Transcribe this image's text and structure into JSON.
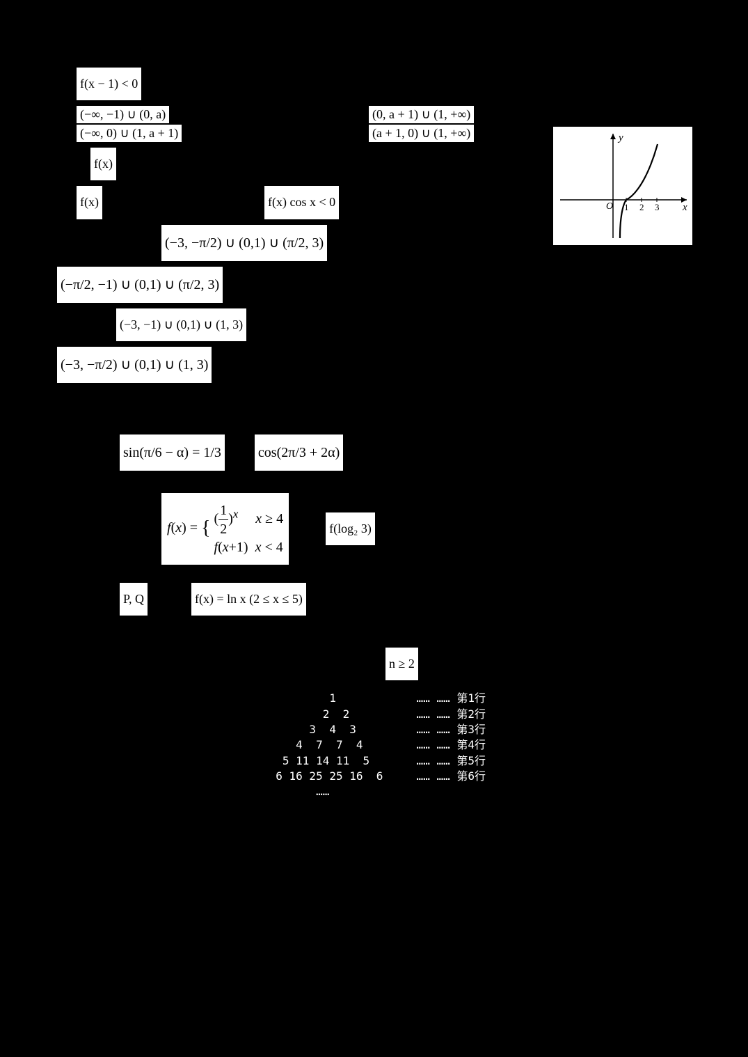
{
  "q10": {
    "ineq": "f(x − 1) < 0",
    "A": "(−∞, −1) ∪ (0, a)",
    "B": "(0, a + 1) ∪ (1, +∞)",
    "C": "(−∞, 0) ∪ (1, a + 1)",
    "D": "(a + 1, 0) ∪ (1, +∞)"
  },
  "q11": {
    "fx1": "f(x)",
    "fx2": "f(x)",
    "ineq": "f(x) cos x < 0",
    "center": "(−3, −π/2) ∪ (0,1) ∪ (π/2, 3)",
    "A": "(−π/2, −1) ∪ (0,1) ∪ (π/2, 3)",
    "B": "(−3, −1) ∪ (0,1) ∪ (1, 3)",
    "C": "(−3, −π/2) ∪ (0,1) ∪ (1, 3)"
  },
  "graph": {
    "svg_bg": "#ffffff",
    "axis_color": "#000000",
    "axis_width": 1.5,
    "curve_color": "#000000",
    "curve_width": 2.2,
    "xlabel": "x",
    "ylabel": "y",
    "origin": "O",
    "ticks": [
      "1",
      "2",
      "3"
    ]
  },
  "q13": {
    "expr_given": "sin(π/6 − α) = 1/3",
    "expr_find": "cos(2π/3 + 2α)"
  },
  "q14": {
    "piecewise": "f(x) = { (1/2)^x , x ≥ 4 ; f(x+1) , x < 4 }",
    "find": "f(log₂ 3)"
  },
  "q15": {
    "pq": "P, Q",
    "fn": "f(x) = ln x (2 ≤ x ≤ 5)"
  },
  "q16": {
    "nge2": "n ≥ 2",
    "triangle_rows": [
      {
        "nums": "          1           ",
        "label": "…… …… 第1行"
      },
      {
        "nums": "         2  2         ",
        "label": "…… …… 第2行"
      },
      {
        "nums": "       3  4  3        ",
        "label": "…… …… 第3行"
      },
      {
        "nums": "     4  7  7  4       ",
        "label": "…… …… 第4行"
      },
      {
        "nums": "   5 11 14 11  5      ",
        "label": "…… …… 第5行"
      },
      {
        "nums": "  6 16 25 25 16  6    ",
        "label": "…… …… 第6行"
      },
      {
        "nums": "        ……            ",
        "label": ""
      }
    ]
  }
}
